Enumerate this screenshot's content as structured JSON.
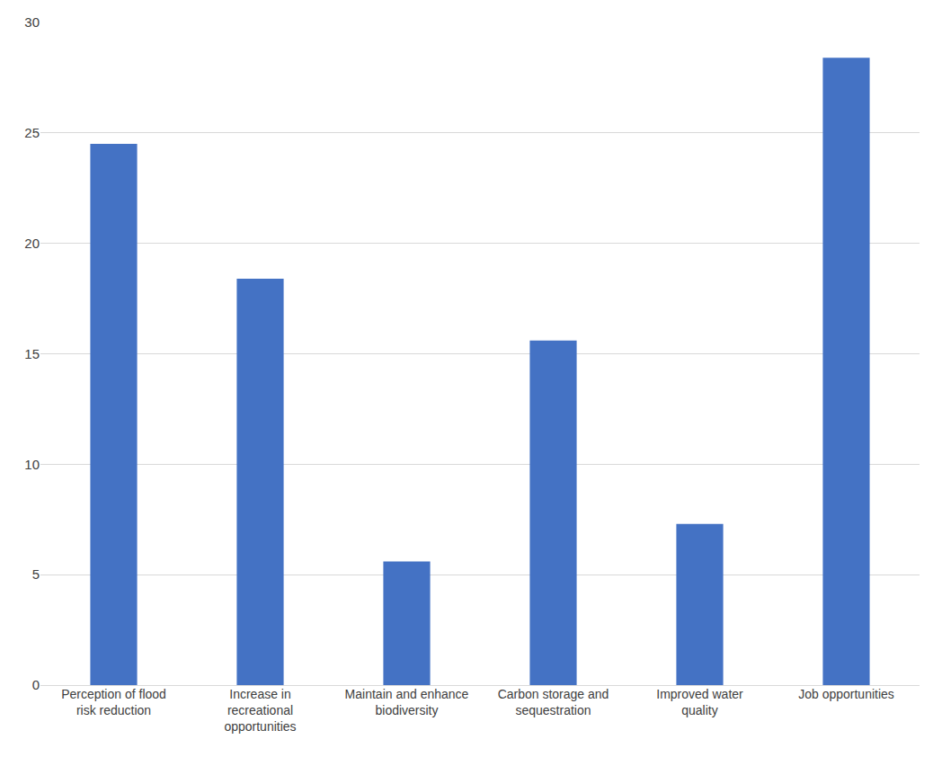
{
  "chart_data": {
    "type": "bar",
    "categories": [
      "Perception of flood risk reduction",
      "Increase in recreational opportunities",
      "Maintain and enhance biodiversity",
      "Carbon storage and sequestration",
      "Improved water quality",
      "Job opportunities"
    ],
    "values": [
      24.5,
      18.4,
      5.6,
      15.6,
      7.3,
      28.4
    ],
    "color": "#4472c4",
    "ylim": [
      0,
      30
    ],
    "yticks": [
      0,
      5,
      10,
      15,
      20,
      25,
      30
    ],
    "grid": true
  }
}
